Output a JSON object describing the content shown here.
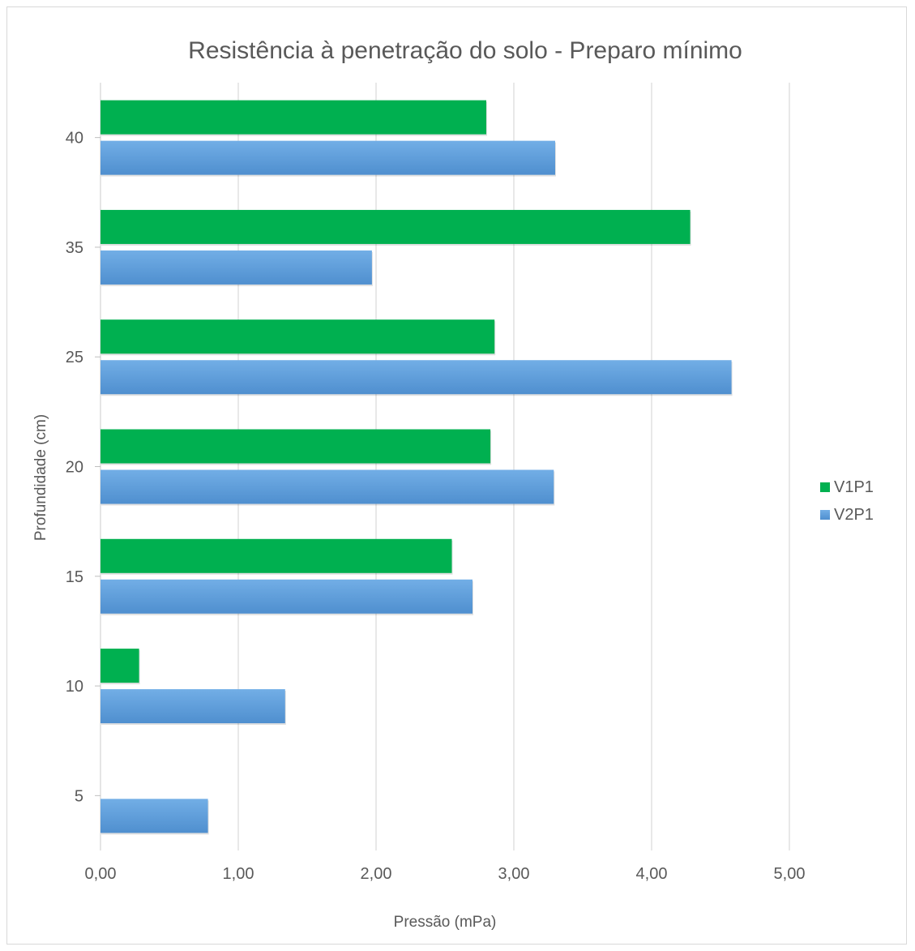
{
  "chart_data": {
    "type": "bar",
    "orientation": "horizontal",
    "title": "Resistência à penetração do solo - Preparo mínimo",
    "xlabel": "Pressão (mPa)",
    "ylabel": "Profundidade (cm)",
    "categories": [
      "5",
      "10",
      "15",
      "20",
      "25",
      "35",
      "40"
    ],
    "series": [
      {
        "name": "V1P1",
        "color": "#00b050",
        "values": [
          0,
          0.28,
          2.55,
          2.83,
          2.86,
          4.28,
          2.8
        ]
      },
      {
        "name": "V2P1",
        "color": "#5b9bd5",
        "values": [
          0.78,
          1.34,
          2.7,
          3.29,
          4.58,
          1.97,
          3.3
        ]
      }
    ],
    "xlim": [
      0,
      5
    ],
    "xticks": [
      "0,00",
      "1,00",
      "2,00",
      "3,00",
      "4,00",
      "5,00"
    ],
    "grid": "vertical",
    "legend": "right"
  }
}
